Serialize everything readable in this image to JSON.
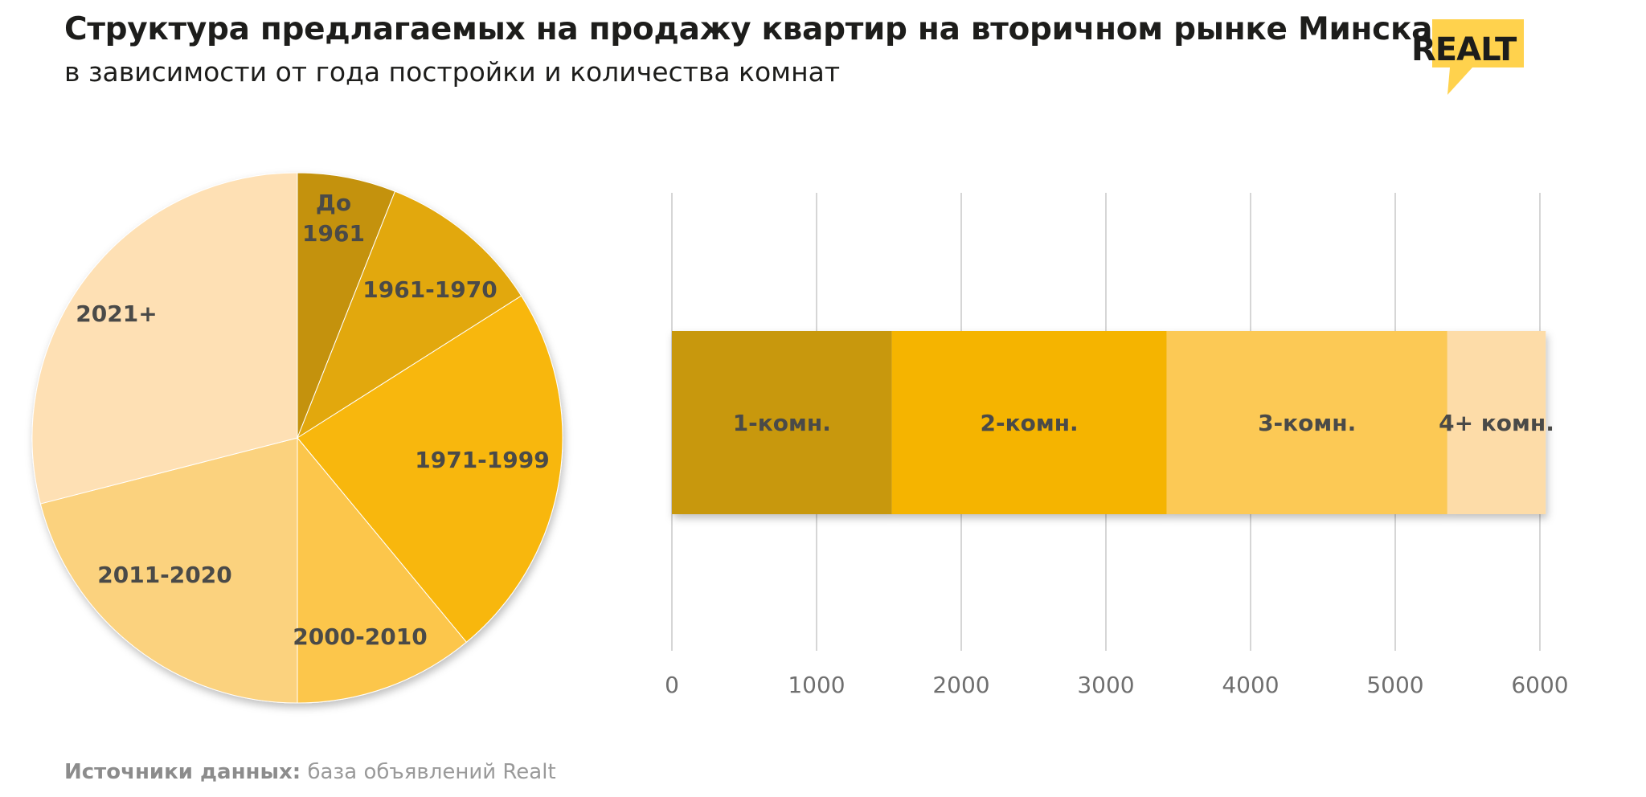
{
  "header": {
    "title": "Структура предлагаемых на продажу квартир на вторичном рынке Минска",
    "subtitle": "в зависимости от года постройки и количества комнат"
  },
  "logo": {
    "text": "REALT",
    "accent": "#FFD24D"
  },
  "colors": {
    "pie": [
      "#C4920E",
      "#E2A80F",
      "#F8B70B",
      "#FCC64B",
      "#FBD27E",
      "#FEE0B4"
    ],
    "bar": [
      "#C8980E",
      "#F5B400",
      "#FCC955",
      "#FDDCA8"
    ],
    "grid": "#d6d6d6"
  },
  "chart_data": [
    {
      "type": "pie",
      "slices": [
        {
          "label": "До 1961",
          "value": 6
        },
        {
          "label": "1961-1970",
          "value": 10
        },
        {
          "label": "1971-1999",
          "value": 23
        },
        {
          "label": "2000-2010",
          "value": 11
        },
        {
          "label": "2011-2020",
          "value": 21
        },
        {
          "label": "2021+",
          "value": 29
        }
      ]
    },
    {
      "type": "bar",
      "orientation": "horizontal",
      "stacked": true,
      "xlim": [
        0,
        6000
      ],
      "xticks": [
        "0",
        "1000",
        "2000",
        "3000",
        "4000",
        "5000",
        "6000"
      ],
      "grid": true,
      "series": [
        {
          "name": "1-комн.",
          "values": [
            1520
          ]
        },
        {
          "name": "2-комн.",
          "values": [
            1900
          ]
        },
        {
          "name": "3-комн.",
          "values": [
            1940
          ]
        },
        {
          "name": "4+ комн.",
          "values": [
            680
          ]
        }
      ]
    }
  ],
  "footer": {
    "source_label": "Источники данных:",
    "source_text": " база объявлений Realt"
  }
}
